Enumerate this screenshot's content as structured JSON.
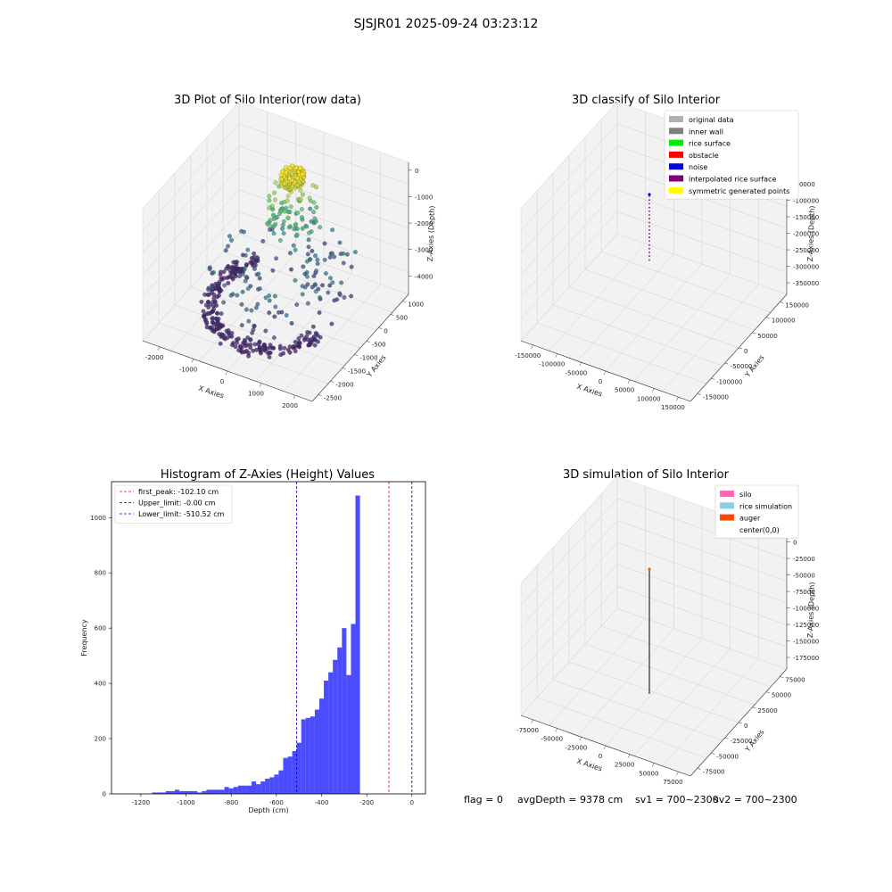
{
  "suptitle": "SJSJR01 2025-09-24 03:23:12",
  "status": {
    "flag": "flag = 0",
    "avg": "avgDepth = 9378 cm",
    "sv1": "sv1 = 700~2300",
    "sv2": "sv2 = 700~2300"
  },
  "chart_data": [
    {
      "id": "raw3d",
      "type": "scatter",
      "projection": "3d",
      "title": "3D Plot of Silo Interior(row data)",
      "xlabel": "X Axies",
      "ylabel": "Y Axies",
      "zlabel": "Z-Axies (Depth)",
      "xticks": [
        "-2000",
        "-1000",
        "0",
        "1000",
        "2000"
      ],
      "yticks": [
        "1000",
        "500",
        "0",
        "-500",
        "-1000",
        "-1500",
        "-2000",
        "-2500"
      ],
      "zticks": [
        "0",
        "-1000",
        "-2000",
        "-3000",
        "-4000"
      ],
      "xlim": [
        -2300,
        2300
      ],
      "ylim": [
        -2700,
        1300
      ],
      "zlim": [
        -4500,
        0
      ],
      "colormap": "viridis"
    },
    {
      "id": "classify3d",
      "type": "scatter",
      "projection": "3d",
      "title": "3D classify of Silo Interior",
      "xlabel": "X Axies",
      "ylabel": "Y Axies",
      "zlabel": "Z-Axies (Depth)",
      "xticks": [
        "-150000",
        "-100000",
        "-50000",
        "0",
        "50000",
        "100000",
        "150000"
      ],
      "yticks": [
        "150000",
        "100000",
        "50000",
        "0",
        "-50000",
        "-100000",
        "-150000"
      ],
      "zticks": [
        "0",
        "-50000",
        "-100000",
        "-150000",
        "-200000",
        "-250000",
        "-300000",
        "-350000"
      ],
      "legend": [
        {
          "label": "original data",
          "color": "#b0b0b0"
        },
        {
          "label": "inner wall",
          "color": "#808080"
        },
        {
          "label": "rice surface",
          "color": "#00ee00"
        },
        {
          "label": "obstacle",
          "color": "#ff0000"
        },
        {
          "label": "noise",
          "color": "#0000ee"
        },
        {
          "label": "interpolated rice surface",
          "color": "#800080"
        },
        {
          "label": "symmetric generated points",
          "color": "#ffff00"
        }
      ],
      "legend_loc": "upper right"
    },
    {
      "id": "histogram",
      "type": "bar",
      "title": "Histogram of Z-Axies (Height) Values",
      "xlabel": "Depth (cm)",
      "ylabel": "Frequency",
      "xlim": [
        -1330,
        60
      ],
      "ylim": [
        0,
        1130
      ],
      "xticks": [
        -1200,
        -1000,
        -800,
        -600,
        -400,
        -200,
        0
      ],
      "yticks": [
        0,
        200,
        400,
        600,
        800,
        1000
      ],
      "bar_color": "#0000ff",
      "bar_alpha": 0.7,
      "bins_start": -1250,
      "bin_width": 20,
      "values": [
        0,
        0,
        0,
        0,
        0,
        5,
        5,
        5,
        10,
        10,
        15,
        10,
        10,
        10,
        10,
        5,
        10,
        15,
        15,
        15,
        15,
        25,
        20,
        25,
        30,
        30,
        30,
        45,
        35,
        45,
        55,
        60,
        70,
        85,
        130,
        135,
        155,
        185,
        270,
        275,
        280,
        305,
        345,
        410,
        440,
        485,
        530,
        600,
        430,
        615,
        1080,
        0
      ],
      "vlines": [
        {
          "label": "first_peak: -102.10 cm",
          "x": -102.1,
          "color": "#ff0000"
        },
        {
          "label": "Upper_limit: -0.00 cm",
          "x": -0.0,
          "color": "#00008b"
        },
        {
          "label": "Lower_limit: -510.52 cm",
          "x": -510.52,
          "color": "#0000cd"
        }
      ],
      "legend_loc": "upper left"
    },
    {
      "id": "simulation3d",
      "type": "scatter",
      "projection": "3d",
      "title": "3D simulation of Silo Interior",
      "xlabel": "X Axies",
      "ylabel": "Y Axies",
      "zlabel": "Z-Axies (Depth)",
      "xticks": [
        "-75000",
        "-50000",
        "-25000",
        "0",
        "25000",
        "50000",
        "75000"
      ],
      "yticks": [
        "75000",
        "50000",
        "25000",
        "0",
        "-25000",
        "-50000",
        "-75000"
      ],
      "zticks": [
        "0",
        "-25000",
        "-50000",
        "-75000",
        "-100000",
        "-125000",
        "-150000",
        "-175000"
      ],
      "legend": [
        {
          "label": "silo",
          "color": "#ff69b4"
        },
        {
          "label": "rice simulation",
          "color": "#87ceeb"
        },
        {
          "label": "auger",
          "color": "#ff4500"
        },
        {
          "label": "center(0,0)",
          "color": "#ffffff"
        }
      ],
      "legend_loc": "upper right"
    }
  ]
}
